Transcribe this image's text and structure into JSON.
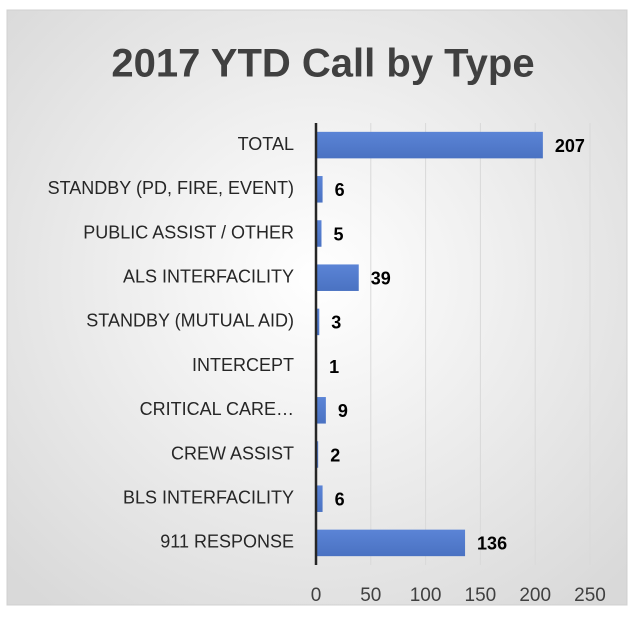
{
  "chart_data": {
    "type": "bar",
    "orientation": "horizontal",
    "title": "2017 YTD Call by Type",
    "categories": [
      "TOTAL",
      "STANDBY (PD, FIRE, EVENT)",
      "PUBLIC ASSIST / OTHER",
      "ALS INTERFACILITY",
      "STANDBY (MUTUAL AID)",
      "INTERCEPT",
      "CRITICAL CARE…",
      "CREW ASSIST",
      "BLS INTERFACILITY",
      "911 RESPONSE"
    ],
    "values": [
      207,
      6,
      5,
      39,
      3,
      1,
      9,
      2,
      6,
      136
    ],
    "color": "#4472c4",
    "xlim": [
      0,
      250
    ],
    "xticks": [
      0,
      50,
      100,
      150,
      200,
      250
    ],
    "grid": true
  }
}
